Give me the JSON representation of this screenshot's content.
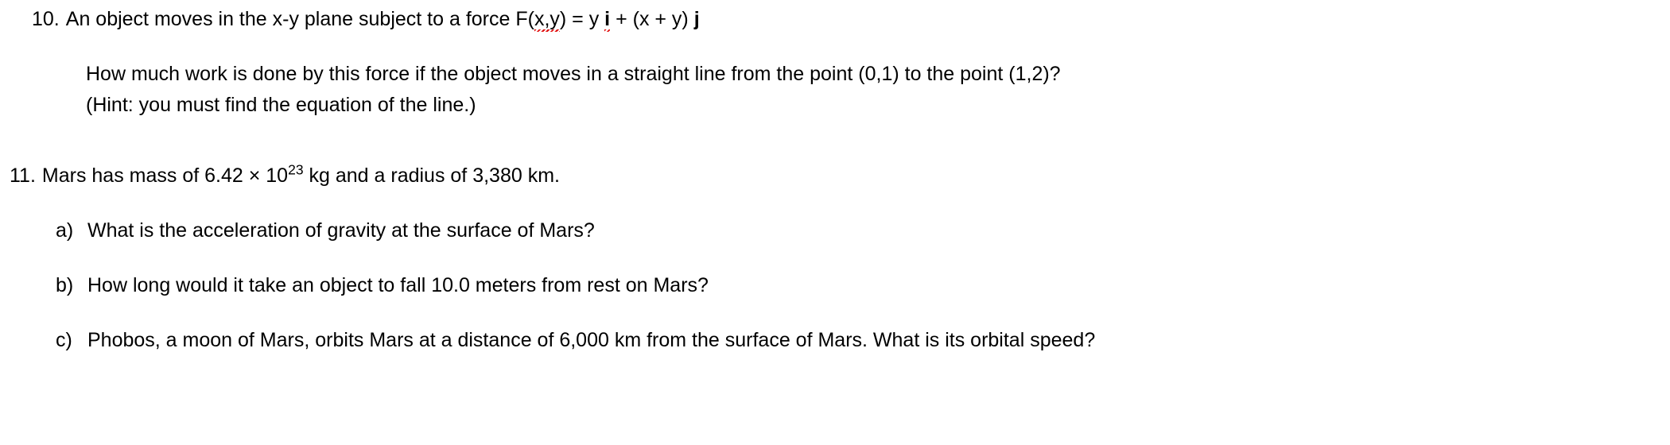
{
  "q10": {
    "number": "10.",
    "stem_pre": "An object moves in the x-y plane subject to a force F(",
    "stem_xy": "x,y",
    "stem_mid": ") = y ",
    "stem_i": "i",
    "stem_mid2": " + (x + y) ",
    "stem_j": "j",
    "sub": "How much work is done by this force if the object moves in a straight line from the point (0,1) to the point (1,2)?",
    "hint": "(Hint: you must find the equation of the line.)"
  },
  "q11": {
    "number": "11.",
    "stem_pre": "Mars has mass of 6.42 × 10",
    "stem_exp": "23",
    "stem_post": " kg and a radius of 3,380 km.",
    "a": {
      "letter": "a)",
      "text": "What is the acceleration of gravity at the surface of Mars?"
    },
    "b": {
      "letter": "b)",
      "text": "How long would it take an object to fall 10.0 meters from rest on Mars?"
    },
    "c": {
      "letter": "c)",
      "text": "Phobos, a moon of Mars, orbits Mars at a distance of 6,000 km from the surface of Mars. What is its orbital speed?"
    }
  }
}
